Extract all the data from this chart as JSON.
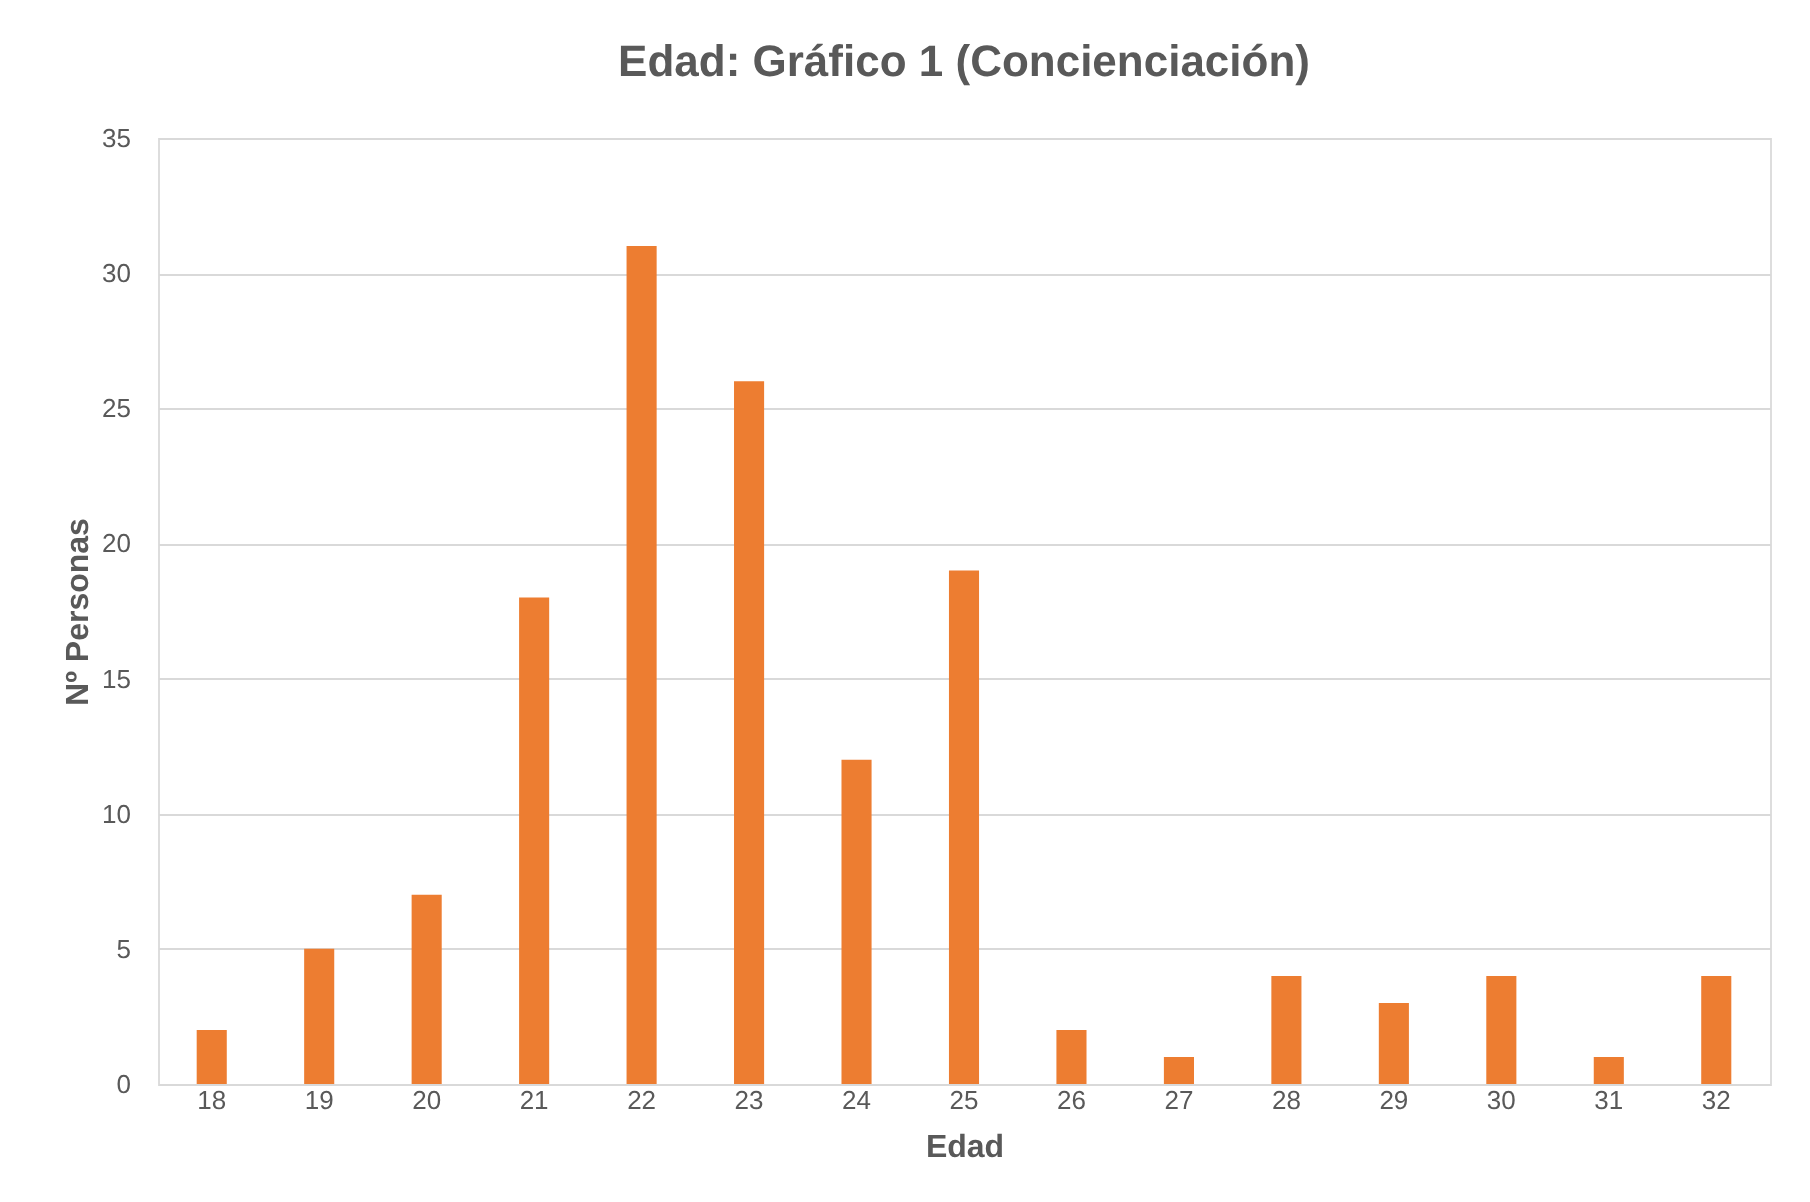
{
  "chart_data": {
    "type": "bar",
    "title": "Edad: Gráfico 1 (Concienciación)",
    "xlabel": "Edad",
    "ylabel": "Nº Personas",
    "categories": [
      "18",
      "19",
      "20",
      "21",
      "22",
      "23",
      "24",
      "25",
      "26",
      "27",
      "28",
      "29",
      "30",
      "31",
      "32"
    ],
    "values": [
      2,
      5,
      7,
      18,
      31,
      26,
      12,
      19,
      2,
      1,
      4,
      3,
      4,
      1,
      4
    ],
    "color": "#ed7d31",
    "ylim": [
      0,
      35
    ],
    "yticks": [
      0,
      5,
      10,
      15,
      20,
      25,
      30,
      35
    ],
    "grid": "y"
  }
}
